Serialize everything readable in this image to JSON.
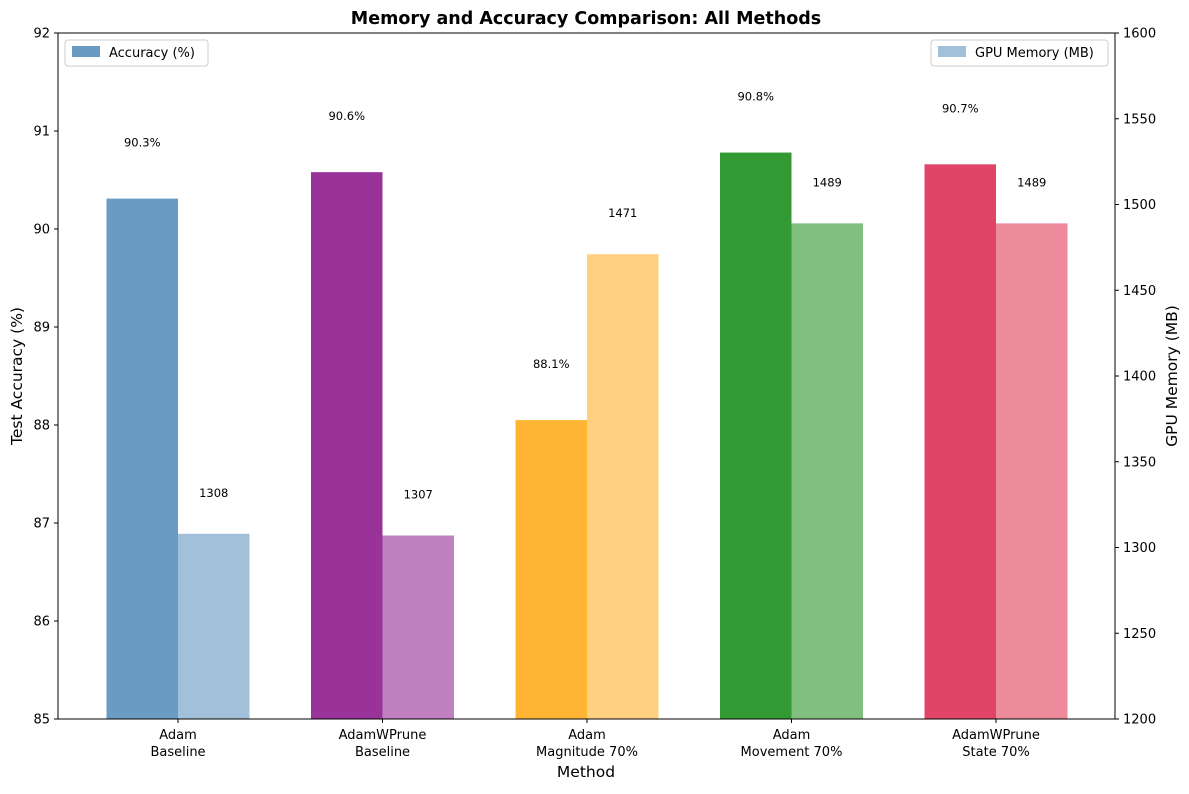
{
  "chart_data": {
    "type": "bar",
    "title": "Memory and Accuracy Comparison: All Methods",
    "xlabel": "Method",
    "ylabel": "Test Accuracy (%)",
    "y2label": "GPU Memory (MB)",
    "categories": [
      [
        "Adam",
        "Baseline"
      ],
      [
        "AdamWPrune",
        "Baseline"
      ],
      [
        "Adam",
        "Magnitude 70%"
      ],
      [
        "Adam",
        "Movement 70%"
      ],
      [
        "AdamWPrune",
        "State 70%"
      ]
    ],
    "series": [
      {
        "name": "Accuracy (%)",
        "axis": "left",
        "values": [
          90.31,
          90.58,
          88.05,
          90.78,
          90.66
        ],
        "labels": [
          "90.3%",
          "90.6%",
          "88.1%",
          "90.8%",
          "90.7%"
        ],
        "colors": [
          "#6a9bc3",
          "#993399",
          "#ffb533",
          "#339933",
          "#e04466"
        ],
        "legend_color": "#6a9bc3"
      },
      {
        "name": "GPU Memory (MB)",
        "axis": "right",
        "values": [
          1308,
          1307,
          1471,
          1489,
          1489
        ],
        "labels": [
          "1308",
          "1307",
          "1471",
          "1489",
          "1489"
        ],
        "colors": [
          "#a3c0da",
          "#c080bf",
          "#ffd080",
          "#80bf80",
          "#ed8a9c"
        ],
        "legend_color": "#a3c0da"
      }
    ],
    "ylim": [
      85,
      92
    ],
    "y2lim": [
      1200,
      1600
    ],
    "yticks": [
      85,
      86,
      87,
      88,
      89,
      90,
      91,
      92
    ],
    "y2ticks": [
      1200,
      1250,
      1300,
      1350,
      1400,
      1450,
      1500,
      1550,
      1600
    ],
    "grid": false,
    "legend_placement": [
      "top-left",
      "top-right"
    ]
  }
}
